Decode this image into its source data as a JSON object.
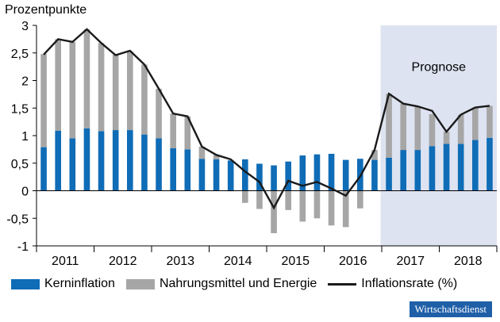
{
  "chart_data": {
    "type": "bar",
    "title": "",
    "ylabel": "Prozentpunkte",
    "xlabel": "",
    "ylim": [
      -1,
      3
    ],
    "yticks": [
      "-1",
      "-0,5",
      "0",
      "0,5",
      "1",
      "1,5",
      "2",
      "2,5",
      "3"
    ],
    "ytick_values": [
      -1,
      -0.5,
      0,
      0.5,
      1,
      1.5,
      2,
      2.5,
      3
    ],
    "year_labels": [
      "2011",
      "2012",
      "2013",
      "2014",
      "2015",
      "2016",
      "2017",
      "2018"
    ],
    "forecast_label": "Prognose",
    "forecast_start_index": 24,
    "categories": [
      "2011 Q1",
      "2011 Q2",
      "2011 Q3",
      "2011 Q4",
      "2012 Q1",
      "2012 Q2",
      "2012 Q3",
      "2012 Q4",
      "2013 Q1",
      "2013 Q2",
      "2013 Q3",
      "2013 Q4",
      "2014 Q1",
      "2014 Q2",
      "2014 Q3",
      "2014 Q4",
      "2015 Q1",
      "2015 Q2",
      "2015 Q3",
      "2015 Q4",
      "2016 Q1",
      "2016 Q2",
      "2016 Q3",
      "2016 Q4",
      "2017 Q1",
      "2017 Q2",
      "2017 Q3",
      "2017 Q4",
      "2018 Q1",
      "2018 Q2",
      "2018 Q3",
      "2018 Q4"
    ],
    "series": [
      {
        "name": "Kerninflation",
        "kind": "bar",
        "color": "#0f6cb6",
        "values": [
          0.79,
          1.09,
          0.95,
          1.13,
          1.08,
          1.1,
          1.1,
          1.02,
          0.95,
          0.77,
          0.75,
          0.58,
          0.57,
          0.55,
          0.57,
          0.49,
          0.46,
          0.53,
          0.64,
          0.66,
          0.67,
          0.56,
          0.58,
          0.56,
          0.6,
          0.74,
          0.74,
          0.81,
          0.85,
          0.85,
          0.92,
          0.96
        ]
      },
      {
        "name": "Nahrungsmittel und Energie",
        "kind": "bar",
        "color": "#a6a6a6",
        "values": [
          1.69,
          1.66,
          1.75,
          1.8,
          1.6,
          1.37,
          1.43,
          1.27,
          0.9,
          0.63,
          0.6,
          0.22,
          0.08,
          -0.01,
          -0.22,
          -0.33,
          -0.77,
          -0.35,
          -0.56,
          -0.5,
          -0.63,
          -0.66,
          -0.32,
          0.18,
          1.16,
          0.84,
          0.79,
          0.58,
          0.22,
          0.53,
          0.59,
          0.58
        ]
      },
      {
        "name": "Inflationsrate (%)",
        "kind": "line",
        "color": "#1a1a1a",
        "values": [
          2.47,
          2.75,
          2.7,
          2.93,
          2.68,
          2.46,
          2.54,
          2.29,
          1.85,
          1.4,
          1.35,
          0.8,
          0.65,
          0.57,
          0.35,
          0.16,
          -0.31,
          0.18,
          0.09,
          0.16,
          0.04,
          -0.09,
          0.26,
          0.74,
          1.76,
          1.58,
          1.53,
          1.45,
          1.07,
          1.38,
          1.51,
          1.54
        ]
      }
    ],
    "grid": false,
    "legend_position": "bottom"
  },
  "brand": "Wirtschaftsdienst"
}
